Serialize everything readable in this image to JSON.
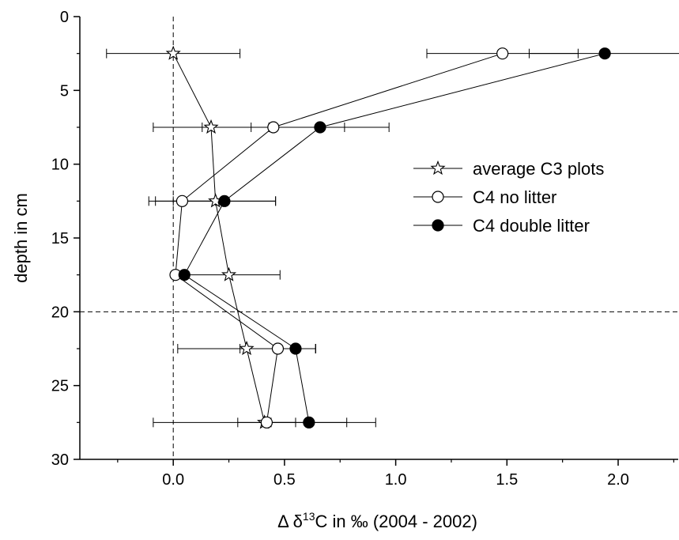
{
  "chart_data": {
    "type": "scatter",
    "xlabel": {
      "prefix": "Δ δ",
      "sup": "13",
      "suffix": "C in ‰ (2004 - 2002)"
    },
    "ylabel": "depth in cm",
    "xlim": [
      -0.42,
      2.27
    ],
    "ylim": [
      0,
      30
    ],
    "y_inverted": true,
    "x_ticks": [
      "0.0",
      "0.5",
      "1.0",
      "1.5",
      "2.0"
    ],
    "x_tick_values": [
      0,
      0.5,
      1.0,
      1.5,
      2.0
    ],
    "y_ticks": [
      "0",
      "5",
      "10",
      "15",
      "20",
      "25",
      "30"
    ],
    "y_tick_values": [
      0,
      5,
      10,
      15,
      20,
      25,
      30
    ],
    "reference_lines": {
      "x": 0,
      "y": 20
    },
    "legend_position": "right-middle",
    "series": [
      {
        "name": "average C3 plots",
        "marker": "star",
        "depth": [
          2.5,
          7.5,
          12.5,
          17.5,
          22.5,
          27.5
        ],
        "x": [
          0.0,
          0.17,
          0.19,
          0.25,
          0.33,
          0.41
        ],
        "err": [
          0.3,
          0.26,
          0.27,
          0.23,
          0.31,
          0.5
        ]
      },
      {
        "name": "C4 no litter",
        "marker": "open-circle",
        "depth": [
          2.5,
          7.5,
          12.5,
          17.5,
          22.5,
          27.5
        ],
        "x": [
          1.48,
          0.45,
          0.04,
          0.01,
          0.47,
          0.42
        ],
        "err": [
          0.34,
          0.32,
          0.15,
          0.0,
          0.17,
          0.13
        ]
      },
      {
        "name": "C4 double litter",
        "marker": "filled-circle",
        "depth": [
          2.5,
          7.5,
          12.5,
          17.5,
          22.5,
          27.5
        ],
        "x": [
          1.94,
          0.66,
          0.23,
          0.05,
          0.55,
          0.61
        ],
        "err": [
          0.34,
          0.31,
          0.23,
          0.0,
          0.09,
          0.17
        ]
      }
    ]
  }
}
